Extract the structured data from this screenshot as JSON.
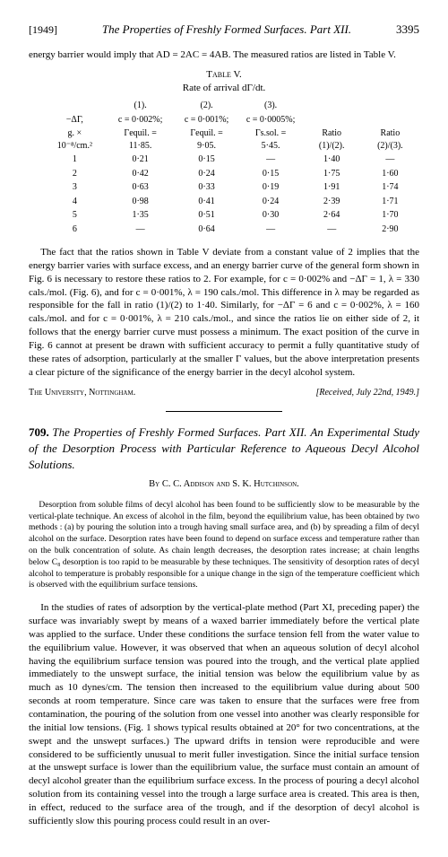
{
  "header": {
    "year": "[1949]",
    "title": "The Properties of Freshly Formed Surfaces.  Part XII.",
    "page": "3395"
  },
  "lead_para": "energy barrier would imply that AD = 2AC = 4AB.  The measured ratios are listed in Table V.",
  "table": {
    "caption": "Table V.",
    "sub": "Rate of arrival dΓ/dt.",
    "heads": {
      "c0a": "−ΔΓ,",
      "c0b": "g. × 10⁻⁸/cm.²",
      "c1a": "(1).",
      "c1b": "c = 0·002%;",
      "c1c": "Γequil. = 11·85.",
      "c2a": "(2).",
      "c2b": "c = 0·001%;",
      "c2c": "Γequil. = 9·05.",
      "c3a": "(3).",
      "c3b": "c = 0·0005%;",
      "c3c": "Γs.sol. = 5·45.",
      "r1": "Ratio (1)/(2).",
      "r2": "Ratio (2)/(3)."
    },
    "rows": [
      {
        "a": "1",
        "b": "0·21",
        "c": "0·15",
        "d": "—",
        "e": "1·40",
        "f": "—"
      },
      {
        "a": "2",
        "b": "0·42",
        "c": "0·24",
        "d": "0·15",
        "e": "1·75",
        "f": "1·60"
      },
      {
        "a": "3",
        "b": "0·63",
        "c": "0·33",
        "d": "0·19",
        "e": "1·91",
        "f": "1·74"
      },
      {
        "a": "4",
        "b": "0·98",
        "c": "0·41",
        "d": "0·24",
        "e": "2·39",
        "f": "1·71"
      },
      {
        "a": "5",
        "b": "1·35",
        "c": "0·51",
        "d": "0·30",
        "e": "2·64",
        "f": "1·70"
      },
      {
        "a": "6",
        "b": "—",
        "c": "0·64",
        "d": "—",
        "e": "—",
        "f": "2·90"
      }
    ]
  },
  "body_para": "The fact that the ratios shown in Table V deviate from a constant value of 2 implies that the energy barrier varies with surface excess, and an energy barrier curve of the general form shown in Fig. 6 is necessary to restore these ratios to 2.  For example, for c = 0·002% and −ΔΓ = 1, λ = 330 cals./mol. (Fig. 6), and for c = 0·001%, λ = 190 cals./mol.  This difference in λ may be regarded as responsible for the fall in ratio (1)/(2) to 1·40.  Similarly, for −ΔΓ = 6 and c = 0·002%, λ = 160 cals./mol. and for c = 0·001%, λ = 210 cals./mol., and since the ratios lie on either side of 2, it follows that the energy barrier curve must possess a minimum.  The exact position of the curve in Fig. 6 cannot at present be drawn with sufficient accuracy to permit a fully quantitative study of these rates of adsorption, particularly at the smaller Γ values, but the above interpretation presents a clear picture of the significance of the energy barrier in the decyl alcohol system.",
  "attrib": {
    "left": "The University, Nottingham.",
    "right": "[Received, July 22nd, 1949.]"
  },
  "article": {
    "num": "709.",
    "title": "The Properties of Freshly Formed Surfaces. Part XII. An Experimental Study of the Desorption Process with Particular Reference to Aqueous Decyl Alcohol Solutions.",
    "byline": "By C. C. Addison and S. K. Hutchinson."
  },
  "abstract": "Desorption from soluble films of decyl alcohol has been found to be sufficiently slow to be measurable by the vertical-plate technique.  An excess of alcohol in the film, beyond the equilibrium value, has been obtained by two methods : (a) by pouring the solution into a trough having small surface area, and (b) by spreading a film of decyl alcohol on the surface.  Desorption rates have been found to depend on surface excess and temperature rather than on the bulk concentration of solute.  As chain length decreases, the desorption rates increase; at chain lengths below C₈ desorption is too rapid to be measurable by these techniques.  The sensitivity of desorption rates of decyl alcohol to temperature is probably responsible for a unique change in the sign of the temperature coefficient which is observed with the equilibrium surface tensions.",
  "main_para": "In the studies of rates of adsorption by the vertical-plate method (Part XI, preceding paper) the surface was invariably swept by means of a waxed barrier immediately before the vertical plate was applied to the surface.  Under these conditions the surface tension fell from the water value to the equilibrium value.  However, it was observed that when an aqueous solution of decyl alcohol having the equilibrium surface tension was poured into the trough, and the vertical plate applied immediately to the unswept surface, the initial tension was below the equilibrium value by as much as 10 dynes/cm.  The tension then increased to the equilibrium value during about 500 seconds at room temperature.  Since care was taken to ensure that the surfaces were free from contamination, the pouring of the solution from one vessel into another was clearly responsible for the initial low tensions.  (Fig. 1 shows typical results obtained at 20° for two concentrations, at the swept and the unswept surfaces.)  The upward drifts in tension were reproducible and were considered to be sufficiently unusual to merit fuller investigation.  Since the initial surface tension at the unswept surface is lower than the equilibrium value, the surface must contain an amount of decyl alcohol greater than the equilibrium surface excess.  In the process of pouring a decyl alcohol solution from its containing vessel into the trough a large surface area is created.  This area is then, in effect, reduced to the surface area of the trough, and if the desorption of decyl alcohol is sufficiently slow this pouring process could result in an over-"
}
